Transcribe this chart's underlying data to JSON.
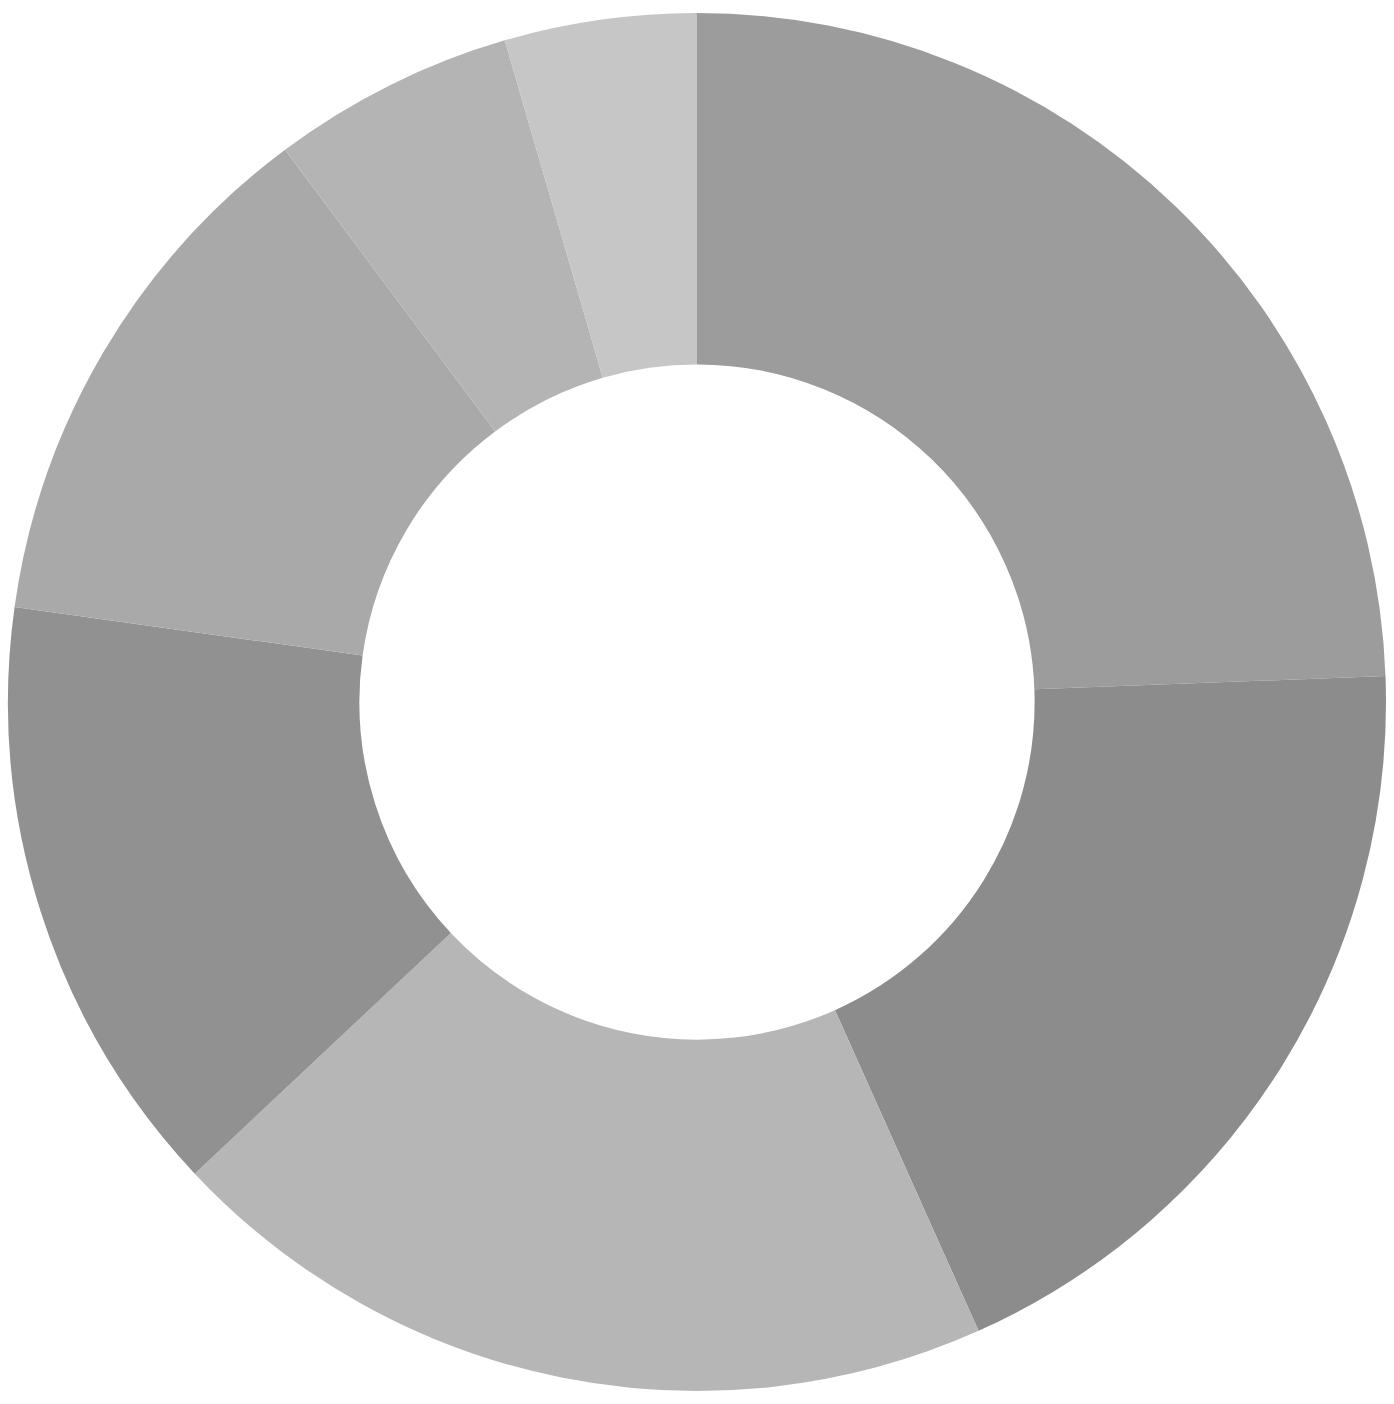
{
  "chart_data": {
    "type": "donut",
    "categories": [
      null,
      null,
      null,
      null,
      null,
      null,
      null
    ],
    "values": [
      24.4,
      18.9,
      19.7,
      14.2,
      12.6,
      5.7,
      4.5
    ],
    "colors": [
      "#9c9c9c",
      "#8c8c8c",
      "#b6b6b6",
      "#919191",
      "#a9a9a9",
      "#b4b4b4",
      "#c6c6c6"
    ]
  }
}
